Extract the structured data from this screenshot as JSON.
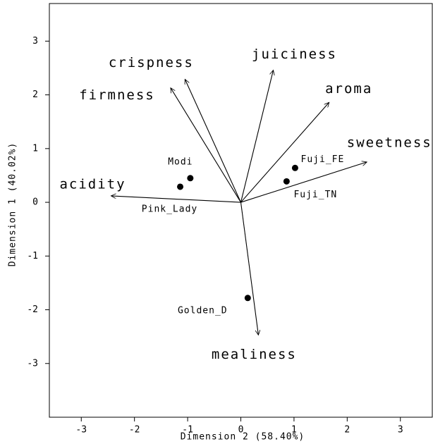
{
  "chart_data": {
    "type": "biplot",
    "xlabel": "Dimension 2 (58.40%)",
    "ylabel": "Dimension 1 (40.02%)",
    "xlim": [
      -3.6,
      3.6
    ],
    "ylim": [
      -4.0,
      3.7
    ],
    "xticks": [
      -3,
      -2,
      -1,
      0,
      1,
      2,
      3
    ],
    "yticks": [
      -3,
      -2,
      -1,
      0,
      1,
      2,
      3
    ],
    "points": {
      "labels": [
        "Modi",
        "Pink_Lady",
        "Fuji_FE",
        "Fuji_TN",
        "Golden_D"
      ],
      "x": [
        -0.95,
        -1.14,
        1.02,
        0.86,
        0.13
      ],
      "y": [
        0.45,
        0.29,
        0.64,
        0.39,
        -1.78
      ]
    },
    "vectors": {
      "labels": [
        "acidity",
        "firmness",
        "crispness",
        "juiciness",
        "aroma",
        "sweetness",
        "mealiness"
      ],
      "x": [
        -2.44,
        -1.32,
        -1.05,
        0.61,
        1.66,
        2.37,
        0.33
      ],
      "y": [
        0.12,
        2.13,
        2.29,
        2.46,
        1.86,
        0.75,
        -2.47
      ]
    }
  }
}
